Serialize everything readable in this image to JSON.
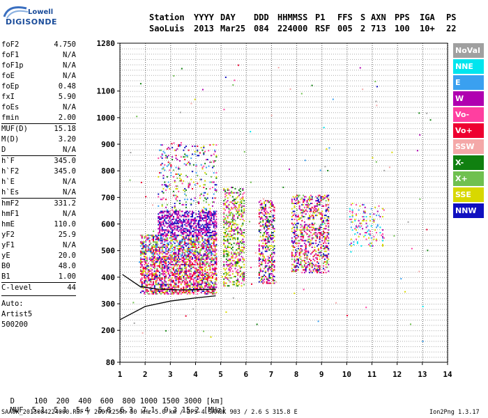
{
  "logo": {
    "line1": "Lowell",
    "line2": "DIGISONDE"
  },
  "header": {
    "labels": [
      "Station",
      "YYYY",
      "DAY",
      "DDD",
      "HHMMSS",
      "P1",
      "FFS",
      "S",
      "AXN",
      "PPS",
      "IGA",
      "PS"
    ],
    "values": [
      "SaoLuis",
      "2013",
      "Mar25",
      "084",
      "224000",
      "RSF",
      "005",
      "2",
      "713",
      "100",
      "10+",
      "22"
    ]
  },
  "params": [
    {
      "name": "foF2",
      "value": "4.750"
    },
    {
      "name": "foF1",
      "value": "N/A"
    },
    {
      "name": "foF1p",
      "value": "N/A"
    },
    {
      "name": "foE",
      "value": "N/A"
    },
    {
      "name": "foEp",
      "value": "0.48"
    },
    {
      "name": "fxI",
      "value": "5.90"
    },
    {
      "name": "foEs",
      "value": "N/A"
    },
    {
      "name": "fmin",
      "value": "2.00"
    },
    {
      "name": "MUF(D)",
      "value": "15.18"
    },
    {
      "name": "M(D)",
      "value": "3.20"
    },
    {
      "name": "D",
      "value": "N/A"
    },
    {
      "name": "h`F",
      "value": "345.0"
    },
    {
      "name": "h`F2",
      "value": "345.0"
    },
    {
      "name": "h`E",
      "value": "N/A"
    },
    {
      "name": "h`Es",
      "value": "N/A"
    },
    {
      "name": "hmF2",
      "value": "331.2"
    },
    {
      "name": "hmF1",
      "value": "N/A"
    },
    {
      "name": "hmE",
      "value": "110.0"
    },
    {
      "name": "yF2",
      "value": "25.9"
    },
    {
      "name": "yF1",
      "value": "N/A"
    },
    {
      "name": "yE",
      "value": "20.0"
    },
    {
      "name": "B0",
      "value": "48.0"
    },
    {
      "name": "B1",
      "value": "1.00"
    },
    {
      "name": "C-level",
      "value": "44"
    }
  ],
  "autoscale": {
    "line1": "Auto:",
    "line2": "Artist5",
    "line3": "500200"
  },
  "legend": [
    {
      "label": "NoVal",
      "color": "#a0a0a0"
    },
    {
      "label": "NNE",
      "color": "#00e5ee"
    },
    {
      "label": "E",
      "color": "#3aa0f0"
    },
    {
      "label": "W",
      "color": "#b000b0"
    },
    {
      "label": "Vo-",
      "color": "#ff3fa0"
    },
    {
      "label": "Vo+",
      "color": "#ee0030"
    },
    {
      "label": "SSW",
      "color": "#f4a8a8"
    },
    {
      "label": "X-",
      "color": "#108010"
    },
    {
      "label": "X+",
      "color": "#70c050"
    },
    {
      "label": "SSE",
      "color": "#d8d800"
    },
    {
      "label": "NNW",
      "color": "#1010c0"
    }
  ],
  "footer": {
    "d_label": "D",
    "d_values": "100  200  400  600  800 1000 1500 3000 [km]",
    "muf_label": "MUF",
    "muf_values": "5.1  5.1  5.4  5.8  6.3  7.1  9.3 15.2 [MHz]",
    "file_info": "SAA0K_2013084224000.RSF / 260fx256h 50 kHz 5.0 km / DPS-4 SAA0K 903 / 2.6 S 315.8 E",
    "version": "Ion2Png 1.3.17"
  },
  "chart_data": {
    "type": "scatter",
    "xlim": [
      1,
      14
    ],
    "ylim": [
      80,
      1280
    ],
    "x_ticks": [
      1,
      2,
      3,
      4,
      5,
      6,
      7,
      8,
      9,
      10,
      11,
      12,
      13,
      14
    ],
    "y_ticks": [
      80,
      200,
      300,
      400,
      500,
      600,
      700,
      800,
      900,
      1000,
      1100,
      1280
    ],
    "grid": true,
    "legend_placement": "right",
    "echo_blocks": [
      {
        "x": [
          1.8,
          4.8
        ],
        "y": [
          340,
          470
        ],
        "series": "Vo-/Vo+/W",
        "density": "high"
      },
      {
        "x": [
          1.8,
          4.8
        ],
        "y": [
          470,
          560
        ],
        "series": "Vo-/W/SSE",
        "density": "high"
      },
      {
        "x": [
          2.5,
          4.8
        ],
        "y": [
          560,
          650
        ],
        "series": "NNW/W",
        "density": "high"
      },
      {
        "x": [
          2.5,
          4.8
        ],
        "y": [
          650,
          900
        ],
        "series": "mixed",
        "density": "low"
      },
      {
        "x": [
          5.1,
          5.9
        ],
        "y": [
          370,
          740
        ],
        "series": "SSE/X+",
        "density": "medium"
      },
      {
        "x": [
          6.5,
          7.1
        ],
        "y": [
          380,
          690
        ],
        "series": "Vo+/W",
        "density": "medium"
      },
      {
        "x": [
          7.8,
          9.3
        ],
        "y": [
          420,
          710
        ],
        "series": "W/SSE",
        "density": "medium"
      },
      {
        "x": [
          10.1,
          11.5
        ],
        "y": [
          520,
          680
        ],
        "series": "E/NNE",
        "density": "low"
      }
    ],
    "trace_lines": [
      {
        "name": "",
        "points": [
          [
            1,
            240
          ],
          [
            1.5,
            265
          ],
          [
            2,
            290
          ],
          [
            3,
            310
          ],
          [
            4,
            322
          ],
          [
            4.8,
            330
          ]
        ]
      },
      {
        "name": "",
        "points": [
          [
            1.1,
            410
          ],
          [
            1.8,
            365
          ],
          [
            2.5,
            355
          ],
          [
            3.5,
            352
          ],
          [
            4.8,
            355
          ]
        ]
      }
    ]
  }
}
